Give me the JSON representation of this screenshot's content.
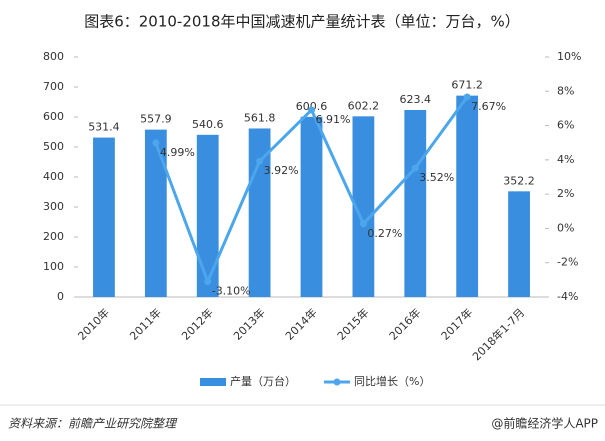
{
  "chart_data": {
    "type": "bar",
    "title": "图表6：2010-2018年中国减速机产量统计表（单位：万台，%）",
    "categories": [
      "2010年",
      "2011年",
      "2012年",
      "2013年",
      "2014年",
      "2015年",
      "2016年",
      "2017年",
      "2018年1-7月"
    ],
    "series": [
      {
        "name": "产量（万台）",
        "type": "bar",
        "color": "#3a8ee0",
        "values": [
          531.4,
          557.9,
          540.6,
          561.8,
          600.6,
          602.2,
          623.4,
          671.2,
          352.2
        ]
      },
      {
        "name": "同比增长（%）",
        "type": "line",
        "axis": "y2",
        "color": "#4ca6ec",
        "values": [
          null,
          4.99,
          -3.1,
          3.92,
          6.91,
          0.27,
          3.52,
          7.67,
          null
        ],
        "value_labels": [
          null,
          "4.99%",
          "-3.10%",
          "3.92%",
          "6.91%",
          "0.27%",
          "3.52%",
          "7.67%",
          null
        ]
      }
    ],
    "ylim": [
      0,
      800
    ],
    "yticks": [
      0,
      100,
      200,
      300,
      400,
      500,
      600,
      700,
      800
    ],
    "y2lim": [
      -4,
      10
    ],
    "y2ticks": [
      {
        "value": -4,
        "label": "-4%"
      },
      {
        "value": -2,
        "label": "-2%"
      },
      {
        "value": 0,
        "label": "0%"
      },
      {
        "value": 2,
        "label": "2%"
      },
      {
        "value": 4,
        "label": "4%"
      },
      {
        "value": 6,
        "label": "6%"
      },
      {
        "value": 8,
        "label": "8%"
      },
      {
        "value": 10,
        "label": "10%"
      }
    ],
    "legend": "bottom",
    "source": "资料来源：前瞻产业研究院整理",
    "credit": "@前瞻经济学人APP"
  }
}
